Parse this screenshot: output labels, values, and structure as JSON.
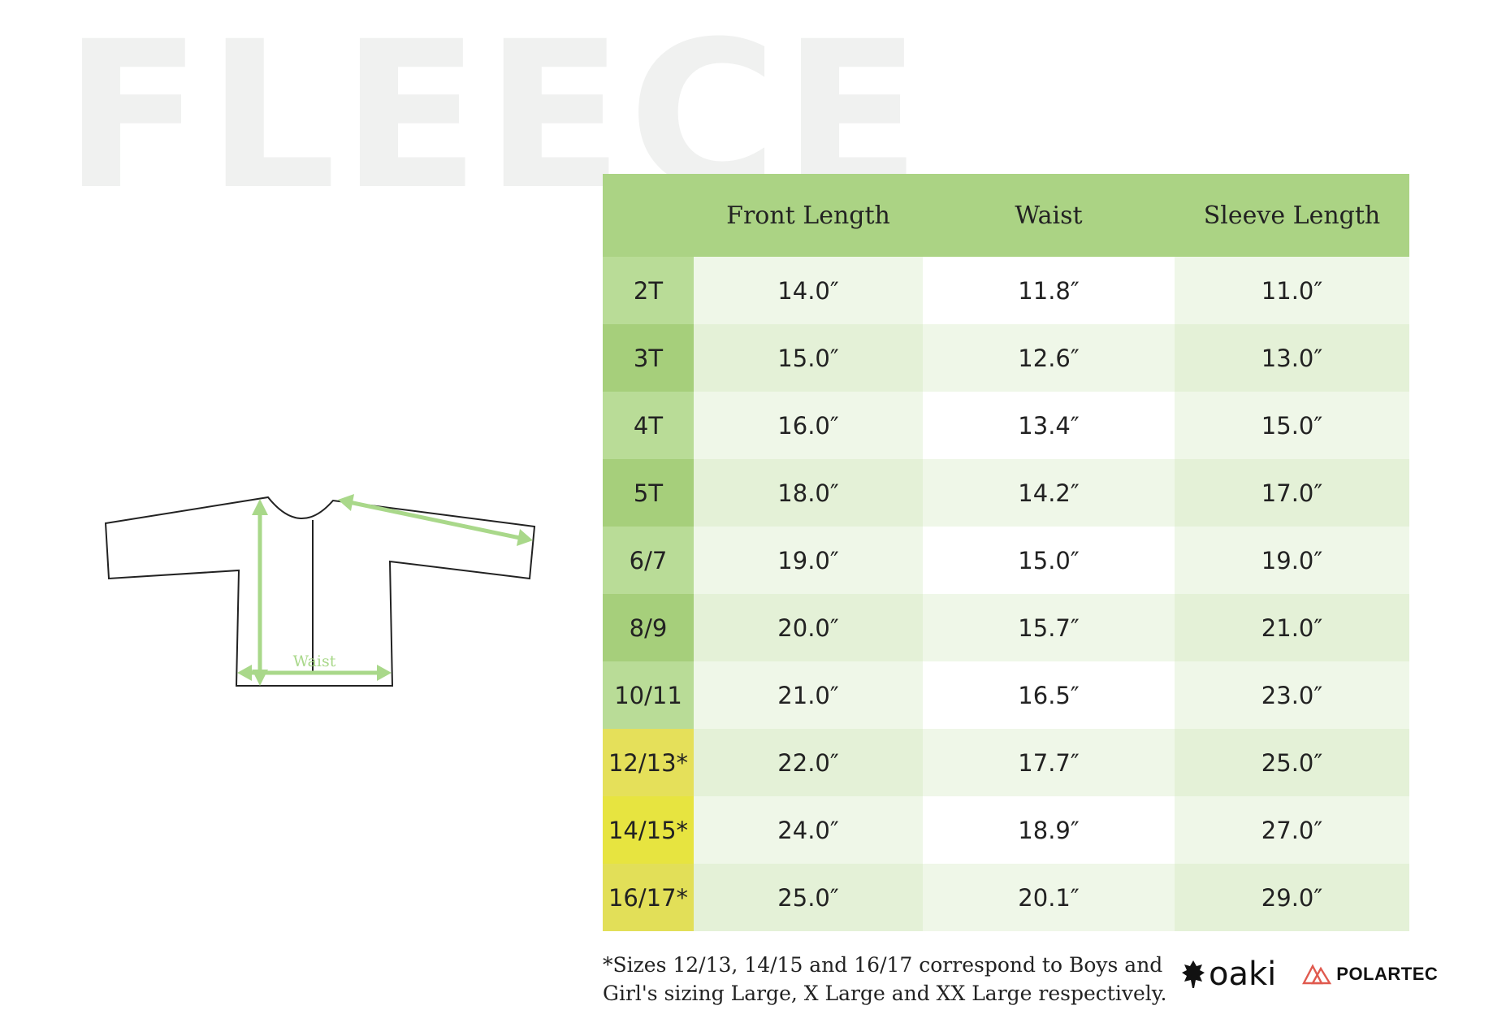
{
  "heading": "FLEECE",
  "diagram": {
    "waist_label": "Waist"
  },
  "table": {
    "columns": [
      "",
      "Front Length",
      "Waist",
      "Sleeve Length"
    ],
    "rows": [
      {
        "size": "2T",
        "front": "14.0″",
        "waist": "11.8″",
        "sleeve": "11.0″"
      },
      {
        "size": "3T",
        "front": "15.0″",
        "waist": "12.6″",
        "sleeve": "13.0″"
      },
      {
        "size": "4T",
        "front": "16.0″",
        "waist": "13.4″",
        "sleeve": "15.0″"
      },
      {
        "size": "5T",
        "front": "18.0″",
        "waist": "14.2″",
        "sleeve": "17.0″"
      },
      {
        "size": "6/7",
        "front": "19.0″",
        "waist": "15.0″",
        "sleeve": "19.0″"
      },
      {
        "size": "8/9",
        "front": "20.0″",
        "waist": "15.7″",
        "sleeve": "21.0″"
      },
      {
        "size": "10/11",
        "front": "21.0″",
        "waist": "16.5″",
        "sleeve": "23.0″"
      },
      {
        "size": "12/13*",
        "front": "22.0″",
        "waist": "17.7″",
        "sleeve": "25.0″"
      },
      {
        "size": "14/15*",
        "front": "24.0″",
        "waist": "18.9″",
        "sleeve": "27.0″"
      },
      {
        "size": "16/17*",
        "front": "25.0″",
        "waist": "20.1″",
        "sleeve": "29.0″"
      }
    ]
  },
  "footnote": {
    "line1": "*Sizes 12/13, 14/15 and 16/17 correspond to Boys and",
    "line2": "Girl's sizing Large, X Large and XX Large respectively."
  },
  "logos": {
    "brand": "oaki",
    "partner": "POLARTEC"
  },
  "colors": {
    "header_green": "#abd384",
    "size_light": "#b9dc97",
    "size_dark": "#a6cf7b",
    "size_yellow_1": "#e5e05a",
    "size_yellow_2": "#e7e440",
    "size_yellow_3": "#e2df58",
    "cell_light_green": "#eff7e8",
    "cell_mid_green": "#e4f1d7",
    "cell_white": "#ffffff",
    "heading_gray": "#f0f1f0",
    "arrow_green": "#a9d88a"
  }
}
